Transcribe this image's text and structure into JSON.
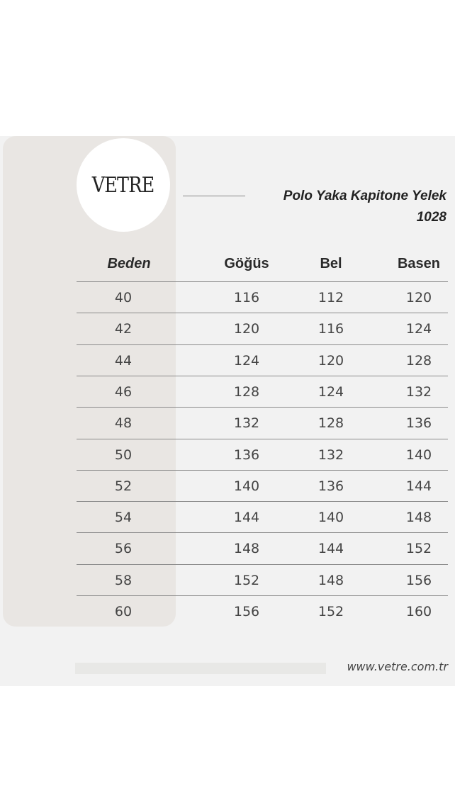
{
  "brand": {
    "logo_text": "VETRE"
  },
  "title": {
    "line1": "Polo Yaka Kapitone Yelek",
    "line2": "1028"
  },
  "table": {
    "headers": [
      "Beden",
      "Göğüs",
      "Bel",
      "Basen"
    ],
    "rows": [
      [
        "40",
        "116",
        "112",
        "120"
      ],
      [
        "42",
        "120",
        "116",
        "124"
      ],
      [
        "44",
        "124",
        "120",
        "128"
      ],
      [
        "46",
        "128",
        "124",
        "132"
      ],
      [
        "48",
        "132",
        "128",
        "136"
      ],
      [
        "50",
        "136",
        "132",
        "140"
      ],
      [
        "52",
        "140",
        "136",
        "144"
      ],
      [
        "54",
        "144",
        "140",
        "148"
      ],
      [
        "56",
        "148",
        "144",
        "152"
      ],
      [
        "58",
        "152",
        "148",
        "156"
      ],
      [
        "60",
        "156",
        "152",
        "160"
      ]
    ]
  },
  "footer": {
    "url": "www.vetre.com.tr"
  }
}
